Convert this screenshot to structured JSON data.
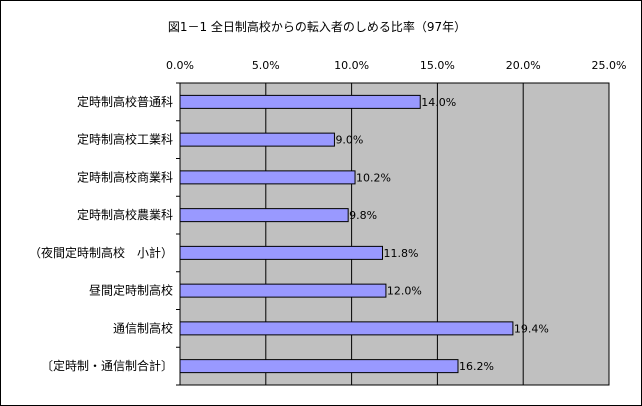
{
  "chart_data": {
    "type": "bar",
    "orientation": "horizontal",
    "title": "図1－1 全日制高校からの転入者のしめる比率（97年）",
    "categories": [
      "定時制高校普通科",
      "定時制高校工業科",
      "定時制高校商業科",
      "定時制高校農業科",
      "（夜間定時制高校　小計）",
      "昼間定時制高校",
      "通信制高校",
      "〔定時制・通信制合計〕"
    ],
    "values": [
      14.0,
      9.0,
      10.2,
      9.8,
      11.8,
      12.0,
      19.4,
      16.2
    ],
    "value_labels": [
      "14.0%",
      "9.0%",
      "10.2%",
      "9.8%",
      "11.8%",
      "12.0%",
      "19.4%",
      "16.2%"
    ],
    "x_ticks": [
      0,
      5,
      10,
      15,
      20,
      25
    ],
    "x_tick_labels": [
      "0.0%",
      "5.0%",
      "10.0%",
      "15.0%",
      "20.0%",
      "25.0%"
    ],
    "xlim": [
      0,
      25
    ],
    "grid": true,
    "colors": {
      "plot_background": "#c0c0c0",
      "bar_fill": "#9999ff",
      "bar_stroke": "#000000",
      "grid": "#000000"
    }
  }
}
